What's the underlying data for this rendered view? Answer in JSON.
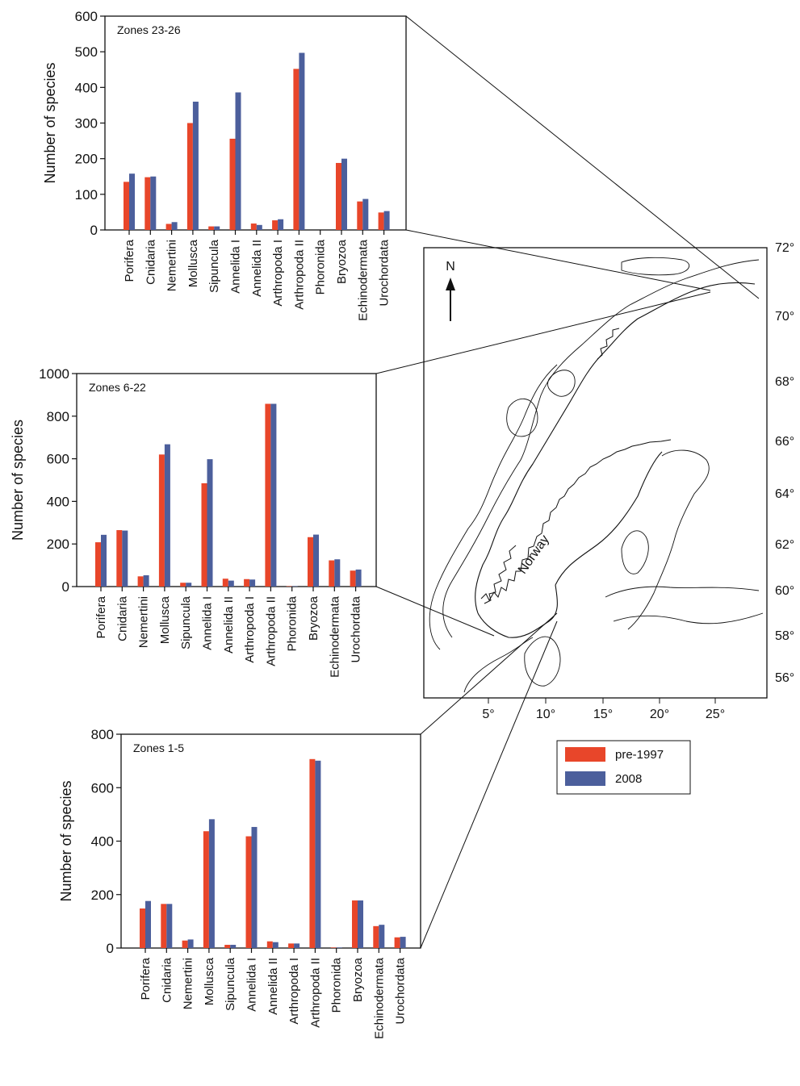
{
  "legend": {
    "entries": [
      {
        "label": "pre-1997",
        "color": "#e8462a"
      },
      {
        "label": "2008",
        "color": "#4c5f9c"
      }
    ]
  },
  "chart_data": [
    {
      "type": "bar",
      "title": "Zones 23-26",
      "ylabel": "Number of species",
      "ylim": [
        0,
        600
      ],
      "yticks": [
        0,
        100,
        200,
        300,
        400,
        500,
        600
      ],
      "categories": [
        "Porifera",
        "Cnidaria",
        "Nemertini",
        "Mollusca",
        "Sipuncula",
        "Annelida I",
        "Annelida II",
        "Arthropoda I",
        "Arthropoda II",
        "Phoronida",
        "Bryozoa",
        "Echinodermata",
        "Urochordata"
      ],
      "series": [
        {
          "name": "pre-1997",
          "color": "#e8462a",
          "values": [
            135,
            148,
            17,
            300,
            10,
            256,
            18,
            27,
            452,
            0,
            188,
            80,
            49
          ]
        },
        {
          "name": "2008",
          "color": "#4c5f9c",
          "values": [
            158,
            150,
            22,
            360,
            10,
            386,
            14,
            30,
            497,
            0,
            200,
            87,
            53
          ]
        }
      ]
    },
    {
      "type": "bar",
      "title": "Zones 6-22",
      "ylabel": "Number of species",
      "ylim": [
        0,
        1000
      ],
      "yticks": [
        0,
        200,
        400,
        600,
        800,
        1000
      ],
      "categories": [
        "Porifera",
        "Cnidaria",
        "Nemertini",
        "Mollusca",
        "Sipuncula",
        "Annelida I",
        "Annelida II",
        "Arthropoda I",
        "Arthropoda II",
        "Phoronida",
        "Bryozoa",
        "Echinodermata",
        "Urochordata"
      ],
      "series": [
        {
          "name": "pre-1997",
          "color": "#e8462a",
          "values": [
            208,
            265,
            48,
            620,
            18,
            485,
            37,
            35,
            858,
            2,
            232,
            123,
            75
          ]
        },
        {
          "name": "2008",
          "color": "#4c5f9c",
          "values": [
            243,
            263,
            53,
            668,
            18,
            598,
            28,
            33,
            858,
            2,
            244,
            128,
            80
          ]
        }
      ]
    },
    {
      "type": "bar",
      "title": "Zones 1-5",
      "ylabel": "Number of species",
      "ylim": [
        0,
        800
      ],
      "yticks": [
        0,
        200,
        400,
        600,
        800
      ],
      "categories": [
        "Porifera",
        "Cnidaria",
        "Nemertini",
        "Mollusca",
        "Sipuncula",
        "Annelida I",
        "Annelida II",
        "Arthropoda I",
        "Arthropoda II",
        "Phoronida",
        "Bryozoa",
        "Echinodermata",
        "Urochordata"
      ],
      "series": [
        {
          "name": "pre-1997",
          "color": "#e8462a",
          "values": [
            148,
            165,
            28,
            437,
            12,
            418,
            25,
            17,
            707,
            2,
            178,
            82,
            40
          ]
        },
        {
          "name": "2008",
          "color": "#4c5f9c",
          "values": [
            176,
            165,
            32,
            482,
            12,
            453,
            22,
            17,
            701,
            2,
            178,
            87,
            42
          ]
        }
      ]
    }
  ],
  "map": {
    "north_label": "N",
    "country_label": "Norway",
    "lat_labels": [
      "72°",
      "70°",
      "68°",
      "66°",
      "64°",
      "62°",
      "60°",
      "58°",
      "56°"
    ],
    "lon_labels": [
      "5°",
      "10°",
      "15°",
      "20°",
      "25°"
    ]
  }
}
